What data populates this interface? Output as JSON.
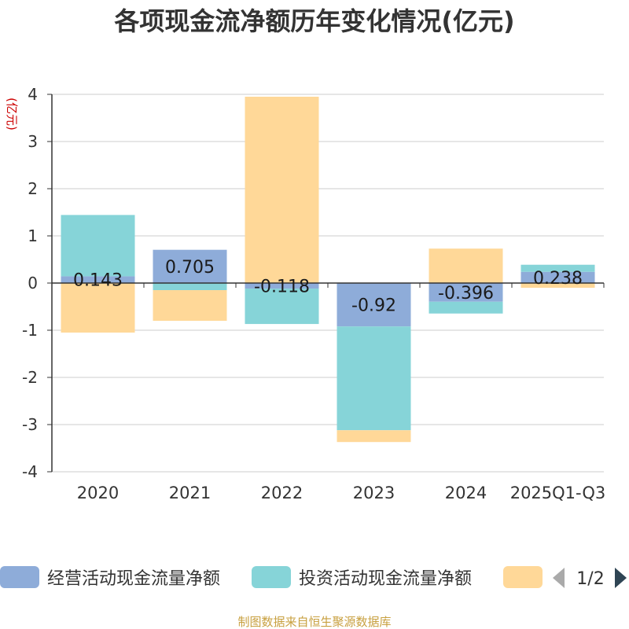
{
  "chart_data": {
    "type": "bar",
    "stacked": true,
    "title": "各项现金流净额历年变化情况(亿元)",
    "ylabel": "(亿元)",
    "xlabel": "",
    "ylim": [
      -4,
      4
    ],
    "yticks": [
      4,
      3,
      2,
      1,
      0,
      -1,
      -2,
      -3,
      -4
    ],
    "grid": true,
    "categories": [
      "2020",
      "2021",
      "2022",
      "2023",
      "2024",
      "2025Q1-Q3"
    ],
    "series": [
      {
        "name": "经营活动现金流量净额",
        "color": "#8eacd9",
        "values": [
          0.143,
          0.705,
          -0.118,
          -0.92,
          -0.396,
          0.238
        ],
        "labels": [
          "0.143",
          "0.705",
          "-0.118",
          "-0.92",
          "-0.396",
          "0.238"
        ]
      },
      {
        "name": "投资活动现金流量净额",
        "color": "#86d4d8",
        "values": [
          1.3,
          -0.15,
          -0.75,
          -2.2,
          -0.25,
          0.15
        ]
      },
      {
        "name": "",
        "color": "#ffd898",
        "values": [
          -1.05,
          -0.65,
          3.95,
          -0.25,
          0.73,
          -0.1
        ]
      }
    ],
    "legend_position": "bottom",
    "legend_page": "1/2"
  },
  "colors": {
    "title": "#333333",
    "axis": "#333333",
    "grid": "#cccccc",
    "ylabel": "#cc0000",
    "source": "#c8a040",
    "pager_active": "#2f4554",
    "pager_inactive": "#aaaaaa"
  },
  "source": "制图数据来自恒生聚源数据库"
}
